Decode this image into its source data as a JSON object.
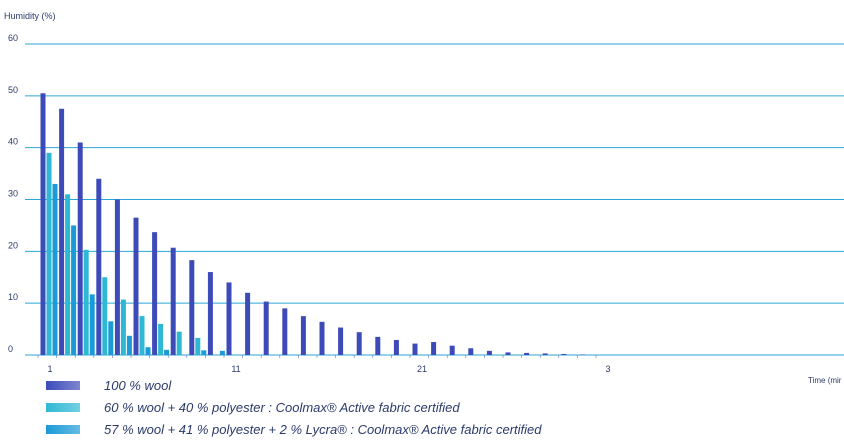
{
  "chart_data": {
    "type": "bar",
    "ylabel": "Humidity (%)",
    "xlabel": "Time (min)",
    "xlabel_visible": "Time (mir",
    "ylim": [
      0,
      60
    ],
    "yticks": [
      0,
      10,
      20,
      30,
      40,
      50,
      60
    ],
    "xticks": [
      {
        "label": "1",
        "minute": 1
      },
      {
        "label": "11",
        "minute": 11
      },
      {
        "label": "21",
        "minute": 21
      },
      {
        "label": "3",
        "minute": 31
      }
    ],
    "grid": true,
    "legend_position": "bottom",
    "x": [
      1,
      2,
      3,
      4,
      5,
      6,
      7,
      8,
      9,
      10,
      11,
      12,
      13,
      14,
      15,
      16,
      17,
      18,
      19,
      20,
      21,
      22,
      23,
      24,
      25,
      26,
      27,
      28,
      29,
      30
    ],
    "series": [
      {
        "name": "100 % wool",
        "color": "#3d4bb8",
        "values": [
          50.5,
          47.5,
          41,
          34,
          30,
          26.5,
          23.7,
          20.7,
          18.3,
          16,
          14,
          12,
          10.3,
          9,
          7.5,
          6.4,
          5.3,
          4.4,
          3.5,
          2.9,
          2.2,
          2.5,
          1.8,
          1.3,
          0.8,
          0.5,
          0.4,
          0.3,
          0.2,
          0.1
        ]
      },
      {
        "name": "60 % wool + 40 % polyester : Coolmax® Active fabric certified",
        "color": "#2fb8d4",
        "values": [
          39,
          31,
          20.3,
          15,
          10.7,
          7.5,
          6,
          4.5,
          3.3,
          0,
          0,
          0,
          0,
          0,
          0,
          0,
          0,
          0,
          0,
          0,
          0,
          0,
          0,
          0,
          0,
          0,
          0,
          0,
          0,
          0
        ]
      },
      {
        "name": "57 % wool + 41 % polyester + 2 % Lycra® : Coolmax® Active fabric certified",
        "color": "#1a9ad6",
        "values": [
          33,
          25,
          11.7,
          6.5,
          3.7,
          1.5,
          1,
          0,
          0.9,
          0.8,
          0,
          0,
          0,
          0,
          0,
          0,
          0,
          0,
          0,
          0,
          0,
          0,
          0,
          0,
          0,
          0,
          0,
          0,
          0,
          0
        ]
      }
    ]
  },
  "legend": [
    {
      "text": "100 % wool",
      "color": "#3d4bb8"
    },
    {
      "text": "60 % wool + 40 % polyester : Coolmax® Active fabric certified",
      "color": "#2fb8d4"
    },
    {
      "text": "57 % wool + 41 % polyester + 2 % Lycra® : Coolmax® Active fabric certified",
      "color": "#1a9ad6"
    }
  ],
  "colors": {
    "grid": "#29a6d8",
    "axis_text": "#2b3a6b"
  }
}
